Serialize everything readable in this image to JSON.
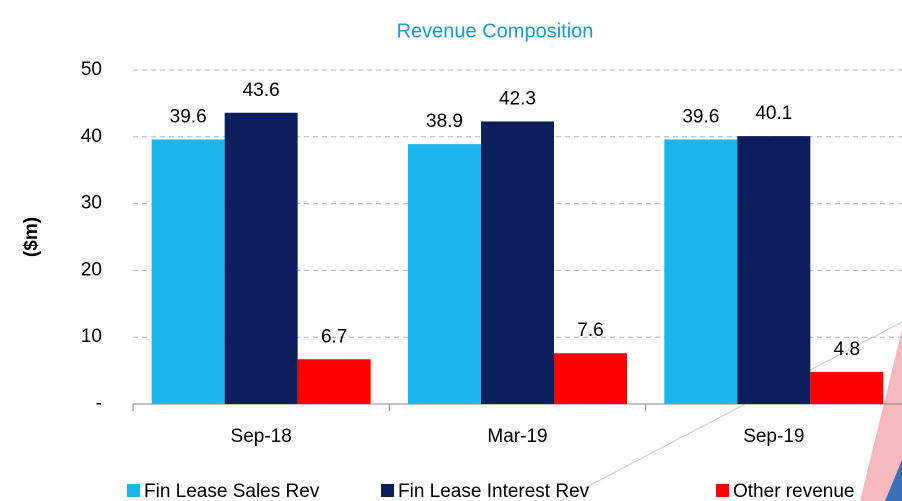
{
  "chart_data": {
    "type": "bar",
    "title": "Revenue Composition",
    "y_label": "($m)",
    "categories": [
      "Sep-18",
      "Mar-19",
      "Sep-19"
    ],
    "series": [
      {
        "name": "Fin Lease Sales Rev",
        "color": "#1bb5ec",
        "values": [
          39.6,
          38.9,
          39.6
        ]
      },
      {
        "name": "Fin Lease Interest Rev",
        "color": "#0c1f5c",
        "values": [
          43.6,
          42.3,
          40.1
        ]
      },
      {
        "name": "Other revenue",
        "color": "#ff0000",
        "values": [
          6.7,
          7.6,
          4.8
        ]
      }
    ],
    "ylim": [
      0,
      50
    ],
    "yticks": [
      {
        "value": 0,
        "label": "-"
      },
      10,
      20,
      30,
      40,
      50
    ],
    "grid": true,
    "legend": "bottom"
  }
}
